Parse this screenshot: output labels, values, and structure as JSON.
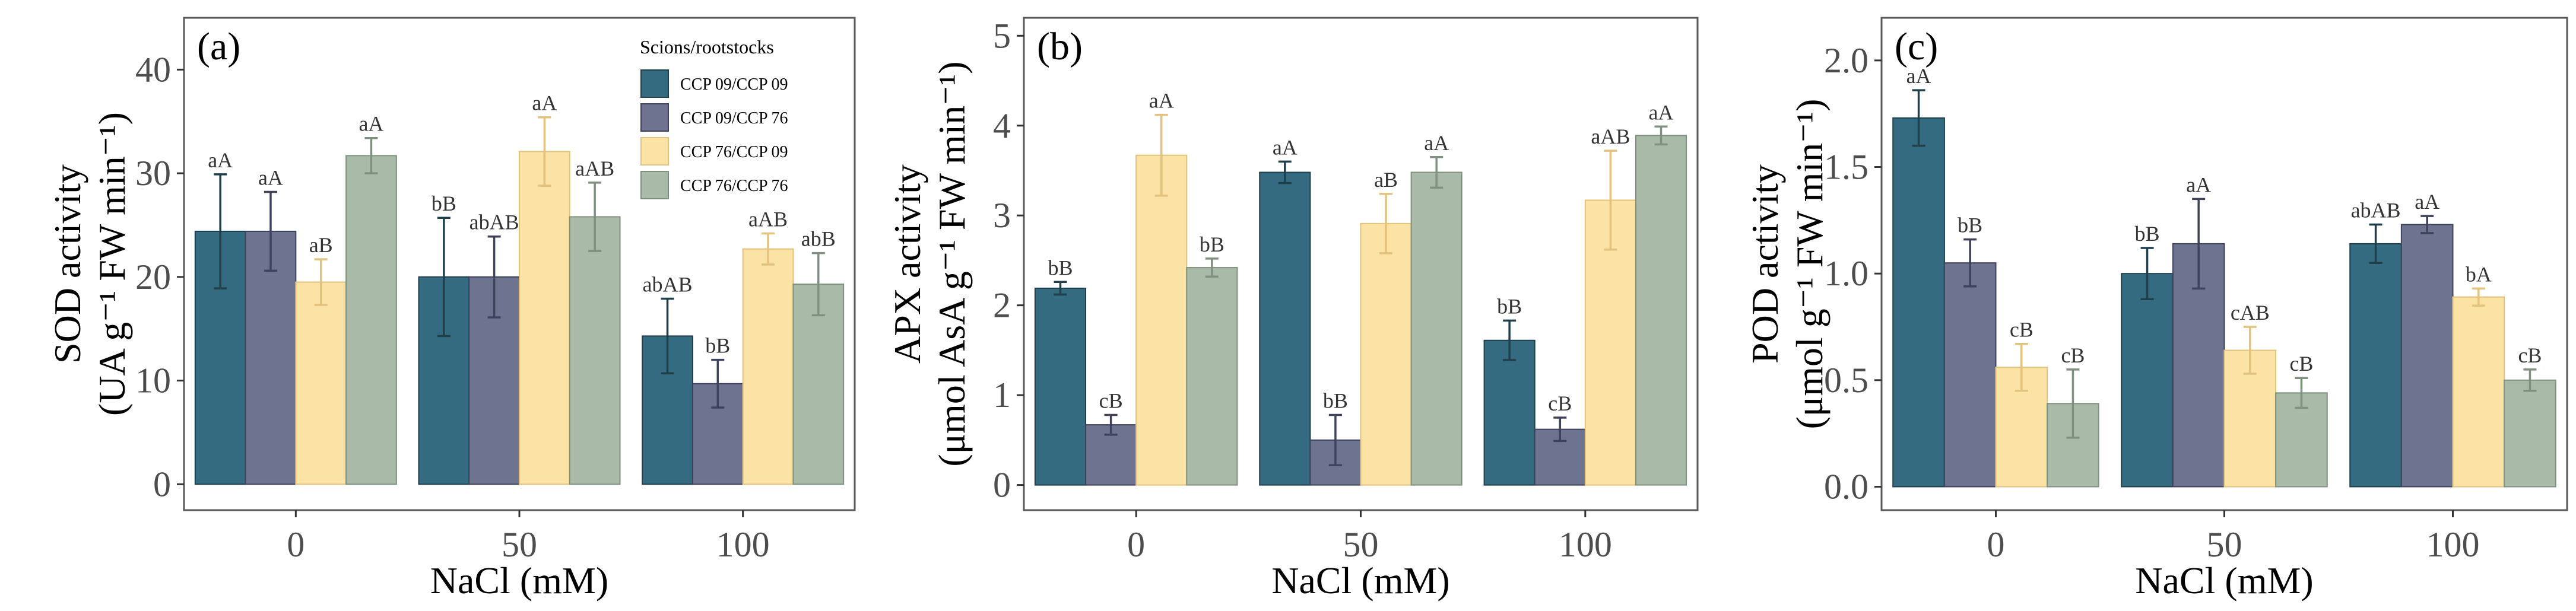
{
  "chart_data": [
    {
      "type": "bar",
      "panel_label": "(a)",
      "title": "",
      "xlabel": "NaCl (mM)",
      "ylabel_line1": "SOD activity",
      "ylabel_line2": "(UA g⁻¹ FW min⁻¹)",
      "ylim": [
        -2.5,
        45
      ],
      "yticks": [
        0,
        10,
        20,
        30,
        40
      ],
      "ytick_labels": [
        "0",
        "10",
        "20",
        "30",
        "40"
      ],
      "categories": [
        "0",
        "50",
        "100"
      ],
      "grid": false,
      "legend_position": "top-right",
      "series": [
        {
          "name": "CCP 09/CCP 09",
          "values": [
            24.4,
            20.0,
            14.3
          ],
          "errors": [
            5.5,
            5.7,
            3.6
          ],
          "labels": [
            "aA",
            "bB",
            "abAB"
          ]
        },
        {
          "name": "CCP 09/CCP 76",
          "values": [
            24.4,
            20.0,
            9.7
          ],
          "errors": [
            3.8,
            3.9,
            2.3
          ],
          "labels": [
            "aA",
            "abAB",
            "bB"
          ]
        },
        {
          "name": "CCP 76/CCP 09",
          "values": [
            19.5,
            32.1,
            22.7
          ],
          "errors": [
            2.2,
            3.3,
            1.5
          ],
          "labels": [
            "aB",
            "aA",
            "aAB"
          ]
        },
        {
          "name": "CCP 76/CCP 76",
          "values": [
            31.7,
            25.8,
            19.3
          ],
          "errors": [
            1.7,
            3.3,
            3.0
          ],
          "labels": [
            "aA",
            "aAB",
            "abB"
          ]
        }
      ]
    },
    {
      "type": "bar",
      "panel_label": "(b)",
      "title": "",
      "xlabel": "NaCl (mM)",
      "ylabel_line1": "APX activity",
      "ylabel_line2": "(μmol AsA g⁻¹ FW min⁻¹)",
      "ylim": [
        -0.28,
        5.2
      ],
      "yticks": [
        0,
        1,
        2,
        3,
        4,
        5
      ],
      "ytick_labels": [
        "0",
        "1",
        "2",
        "3",
        "4",
        "5"
      ],
      "categories": [
        "0",
        "50",
        "100"
      ],
      "grid": false,
      "series": [
        {
          "name": "CCP 09/CCP 09",
          "values": [
            2.19,
            3.48,
            1.61
          ],
          "errors": [
            0.07,
            0.12,
            0.22
          ],
          "labels": [
            "bB",
            "aA",
            "bB"
          ]
        },
        {
          "name": "CCP 09/CCP 76",
          "values": [
            0.67,
            0.5,
            0.62
          ],
          "errors": [
            0.11,
            0.28,
            0.13
          ],
          "labels": [
            "cB",
            "bB",
            "cB"
          ]
        },
        {
          "name": "CCP 76/CCP 09",
          "values": [
            3.67,
            2.91,
            3.17
          ],
          "errors": [
            0.45,
            0.33,
            0.55
          ],
          "labels": [
            "aA",
            "aB",
            "aAB"
          ]
        },
        {
          "name": "CCP 76/CCP 76",
          "values": [
            2.42,
            3.48,
            3.89
          ],
          "errors": [
            0.1,
            0.17,
            0.1
          ],
          "labels": [
            "bB",
            "aA",
            "aA"
          ]
        }
      ]
    },
    {
      "type": "bar",
      "panel_label": "(c)",
      "title": "",
      "xlabel": "NaCl (mM)",
      "ylabel_line1": "POD activity",
      "ylabel_line2": "(μmol g⁻¹ FW min⁻¹)",
      "ylim": [
        -0.11,
        2.2
      ],
      "yticks": [
        0.0,
        0.5,
        1.0,
        1.5,
        2.0
      ],
      "ytick_labels": [
        "0.0",
        "0.5",
        "1.0",
        "1.5",
        "2.0"
      ],
      "categories": [
        "0",
        "50",
        "100"
      ],
      "grid": false,
      "series": [
        {
          "name": "CCP 09/CCP 09",
          "values": [
            1.73,
            1.0,
            1.14
          ],
          "errors": [
            0.13,
            0.12,
            0.09
          ],
          "labels": [
            "aA",
            "bB",
            "abAB"
          ]
        },
        {
          "name": "CCP 09/CCP 76",
          "values": [
            1.05,
            1.14,
            1.23
          ],
          "errors": [
            0.11,
            0.21,
            0.04
          ],
          "labels": [
            "bB",
            "aA",
            "aA"
          ]
        },
        {
          "name": "CCP 76/CCP 09",
          "values": [
            0.56,
            0.64,
            0.89
          ],
          "errors": [
            0.11,
            0.11,
            0.04
          ],
          "labels": [
            "cB",
            "cAB",
            "bA"
          ]
        },
        {
          "name": "CCP 76/CCP 76",
          "values": [
            0.39,
            0.44,
            0.5
          ],
          "errors": [
            0.16,
            0.07,
            0.05
          ],
          "labels": [
            "cB",
            "cB",
            "cB"
          ]
        }
      ]
    }
  ],
  "legend": {
    "title": "Scions/rootstocks",
    "entries": [
      "CCP 09/CCP 09",
      "CCP 09/CCP 76",
      "CCP 76/CCP 09",
      "CCP 76/CCP 76"
    ]
  },
  "colors": {
    "fills": [
      "#346b80",
      "#6e7490",
      "#fae3a4",
      "#a9baa9"
    ],
    "strokes": [
      "#1f3f4b",
      "#3e425a",
      "#e2c27c",
      "#7e917e"
    ],
    "errorbars": [
      "#1f3f4b",
      "#3e425a",
      "#e2c27c",
      "#7e917e"
    ]
  }
}
